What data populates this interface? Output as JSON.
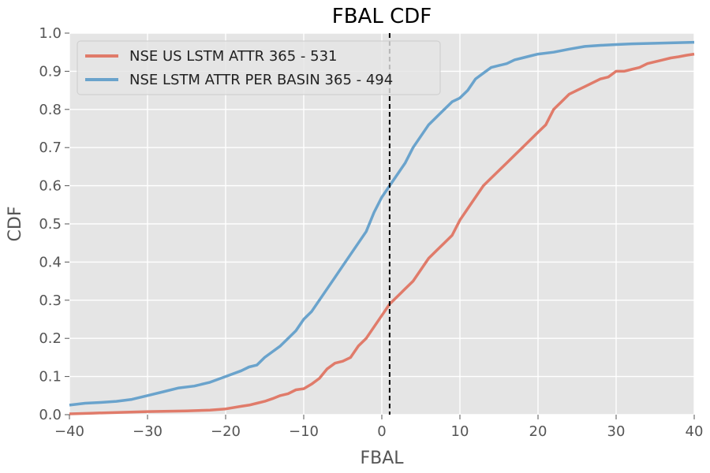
{
  "chart_data": {
    "type": "line",
    "title": "FBAL CDF",
    "xlabel": "FBAL",
    "ylabel": "CDF",
    "xlim": [
      -40,
      40
    ],
    "ylim": [
      0,
      1
    ],
    "grid": true,
    "legend_position": "top-left",
    "xticks": [
      -40,
      -30,
      -20,
      -10,
      0,
      10,
      20,
      30,
      40
    ],
    "xtick_labels": [
      "−40",
      "−30",
      "−20",
      "−10",
      "0",
      "10",
      "20",
      "30",
      "40"
    ],
    "yticks": [
      0,
      0.1,
      0.2,
      0.3,
      0.4,
      0.5,
      0.6,
      0.7,
      0.8,
      0.9,
      1.0
    ],
    "ytick_labels": [
      "0.0",
      "0.1",
      "0.2",
      "0.3",
      "0.4",
      "0.5",
      "0.6",
      "0.7",
      "0.8",
      "0.9",
      "1.0"
    ],
    "reference_line": {
      "x": 1
    },
    "series": [
      {
        "name": "NSE US LSTM ATTR 365 - 531",
        "color": "#e07b6a",
        "x": [
          -40,
          -37,
          -30,
          -25,
          -22,
          -20,
          -18,
          -17,
          -16,
          -15,
          -14,
          -13,
          -12,
          -11,
          -10,
          -9,
          -8,
          -7,
          -6,
          -5,
          -4,
          -3,
          -2,
          -1,
          0,
          1,
          2,
          3,
          4,
          5,
          6,
          7,
          8,
          9,
          10,
          11,
          12,
          13,
          14,
          15,
          16,
          17,
          18,
          19,
          20,
          21,
          22,
          23,
          24,
          25,
          26,
          27,
          28,
          29,
          30,
          31,
          32,
          33,
          34,
          35,
          36,
          37,
          38,
          39,
          40
        ],
        "y": [
          0.002,
          0.004,
          0.008,
          0.01,
          0.012,
          0.015,
          0.022,
          0.025,
          0.03,
          0.035,
          0.042,
          0.05,
          0.055,
          0.065,
          0.068,
          0.08,
          0.095,
          0.12,
          0.135,
          0.14,
          0.15,
          0.18,
          0.2,
          0.23,
          0.26,
          0.29,
          0.31,
          0.33,
          0.35,
          0.38,
          0.41,
          0.43,
          0.45,
          0.47,
          0.51,
          0.54,
          0.57,
          0.6,
          0.62,
          0.64,
          0.66,
          0.68,
          0.7,
          0.72,
          0.74,
          0.76,
          0.8,
          0.82,
          0.84,
          0.85,
          0.86,
          0.87,
          0.88,
          0.885,
          0.9,
          0.9,
          0.905,
          0.91,
          0.92,
          0.925,
          0.93,
          0.935,
          0.938,
          0.942,
          0.945
        ]
      },
      {
        "name": "NSE LSTM ATTR PER BASIN 365 - 494",
        "color": "#6aa3cc",
        "x": [
          -40,
          -38,
          -36,
          -34,
          -32,
          -30,
          -28,
          -26,
          -24,
          -22,
          -20,
          -18,
          -17,
          -16,
          -15,
          -14,
          -13,
          -12,
          -11,
          -10,
          -9,
          -8,
          -7,
          -6,
          -5,
          -4,
          -3,
          -2,
          -1,
          0,
          1,
          2,
          3,
          4,
          5,
          6,
          7,
          8,
          9,
          10,
          11,
          12,
          13,
          14,
          15,
          16,
          17,
          18,
          19,
          20,
          22,
          24,
          26,
          28,
          30,
          32,
          34,
          36,
          38,
          40
        ],
        "y": [
          0.025,
          0.03,
          0.032,
          0.035,
          0.04,
          0.05,
          0.06,
          0.07,
          0.075,
          0.085,
          0.1,
          0.115,
          0.125,
          0.13,
          0.15,
          0.165,
          0.18,
          0.2,
          0.22,
          0.25,
          0.27,
          0.3,
          0.33,
          0.36,
          0.39,
          0.42,
          0.45,
          0.48,
          0.53,
          0.57,
          0.6,
          0.63,
          0.66,
          0.7,
          0.73,
          0.76,
          0.78,
          0.8,
          0.82,
          0.83,
          0.85,
          0.88,
          0.895,
          0.91,
          0.915,
          0.92,
          0.93,
          0.935,
          0.94,
          0.945,
          0.95,
          0.958,
          0.965,
          0.968,
          0.97,
          0.972,
          0.973,
          0.974,
          0.975,
          0.976
        ]
      }
    ]
  }
}
